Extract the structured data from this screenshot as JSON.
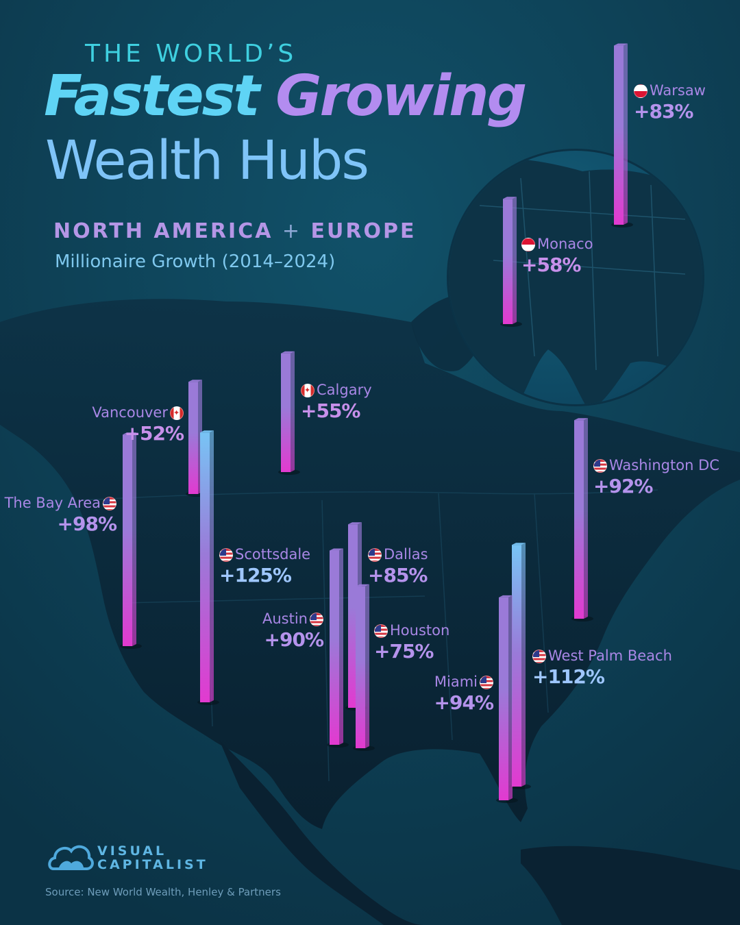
{
  "title": {
    "pre": "THE WORLD’S",
    "main_part1": "Fastest",
    "main_part2": "Growing",
    "sub": "Wealth Hubs",
    "region_a": "NORTH AMERICA",
    "region_sep": "+",
    "region_b": "EUROPE",
    "metric": "Millionaire Growth (2014–2024)"
  },
  "colors": {
    "background": "#0d3a4c",
    "land": "#0a2638",
    "bar_top_blue": "#78c4f5",
    "bar_purple": "#9a7ad8",
    "bar_bottom_magenta": "#e23ad0"
  },
  "chart_data": {
    "type": "bar",
    "unit": "%",
    "categories": [
      "Warsaw",
      "Monaco",
      "Calgary",
      "Vancouver",
      "The Bay Area",
      "Scottsdale",
      "Washington DC",
      "Dallas",
      "Austin",
      "Houston",
      "West Palm Beach",
      "Miami"
    ],
    "values": [
      83,
      58,
      55,
      52,
      98,
      125,
      92,
      85,
      90,
      75,
      112,
      94
    ],
    "hubs": [
      {
        "city": "Warsaw",
        "country": "Poland",
        "flag": "poland-flag",
        "growth": 83,
        "label": "+83%"
      },
      {
        "city": "Monaco",
        "country": "Monaco",
        "flag": "monaco-flag",
        "growth": 58,
        "label": "+58%"
      },
      {
        "city": "Calgary",
        "country": "Canada",
        "flag": "canada-flag",
        "growth": 55,
        "label": "+55%"
      },
      {
        "city": "Vancouver",
        "country": "Canada",
        "flag": "canada-flag",
        "growth": 52,
        "label": "+52%"
      },
      {
        "city": "The Bay Area",
        "country": "USA",
        "flag": "usa-flag",
        "growth": 98,
        "label": "+98%"
      },
      {
        "city": "Scottsdale",
        "country": "USA",
        "flag": "usa-flag",
        "growth": 125,
        "label": "+125%"
      },
      {
        "city": "Washington DC",
        "country": "USA",
        "flag": "usa-flag",
        "growth": 92,
        "label": "+92%"
      },
      {
        "city": "Dallas",
        "country": "USA",
        "flag": "usa-flag",
        "growth": 85,
        "label": "+85%"
      },
      {
        "city": "Austin",
        "country": "USA",
        "flag": "usa-flag",
        "growth": 90,
        "label": "+90%"
      },
      {
        "city": "Houston",
        "country": "USA",
        "flag": "usa-flag",
        "growth": 75,
        "label": "+75%"
      },
      {
        "city": "West Palm Beach",
        "country": "USA",
        "flag": "usa-flag",
        "growth": 112,
        "label": "+112%"
      },
      {
        "city": "Miami",
        "country": "USA",
        "flag": "usa-flag",
        "growth": 94,
        "label": "+94%"
      }
    ]
  },
  "logo": {
    "line1": "VISUAL",
    "line2": "CAPITALIST",
    "icon": "cloud-logo-icon"
  },
  "source": "Source: New World Wealth, Henley & Partners"
}
